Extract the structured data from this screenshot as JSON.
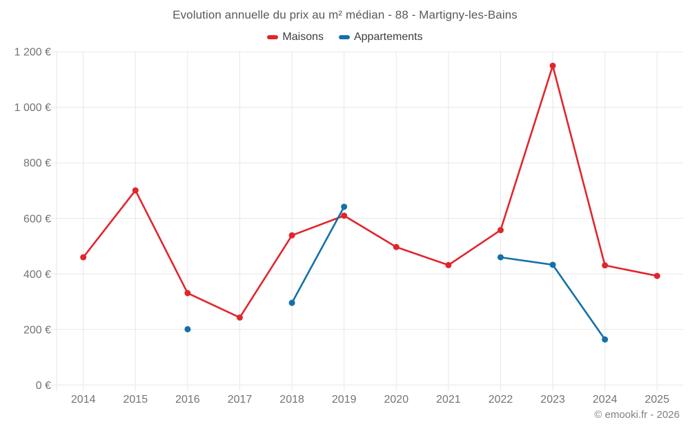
{
  "chart_data": {
    "type": "line",
    "title": "Evolution annuelle du prix au m² médian - 88 - Martigny-les-Bains",
    "categories": [
      "2014",
      "2015",
      "2016",
      "2017",
      "2018",
      "2019",
      "2020",
      "2021",
      "2022",
      "2023",
      "2024",
      "2025"
    ],
    "series": [
      {
        "name": "Maisons",
        "color": "#e1252c",
        "values": [
          460,
          701,
          331,
          243,
          539,
          610,
          497,
          432,
          558,
          1150,
          431,
          393
        ]
      },
      {
        "name": "Appartements",
        "color": "#1370a9",
        "values": [
          null,
          null,
          201,
          null,
          296,
          642,
          null,
          null,
          460,
          433,
          164,
          null
        ]
      }
    ],
    "ylim": [
      0,
      1200
    ],
    "y_tick_step": 200,
    "y_tick_labels": [
      "0 €",
      "200 €",
      "400 €",
      "600 €",
      "800 €",
      "1 000 €",
      "1 200 €"
    ],
    "grid": true,
    "legend_position": "top",
    "grid_color": "#e7e7e7",
    "axis_label_color": "#737373"
  },
  "legend": {
    "items": [
      {
        "label": "Maisons",
        "color": "#e1252c"
      },
      {
        "label": "Appartements",
        "color": "#1370a9"
      }
    ]
  },
  "footer": {
    "copyright": "© emooki.fr - 2026"
  }
}
